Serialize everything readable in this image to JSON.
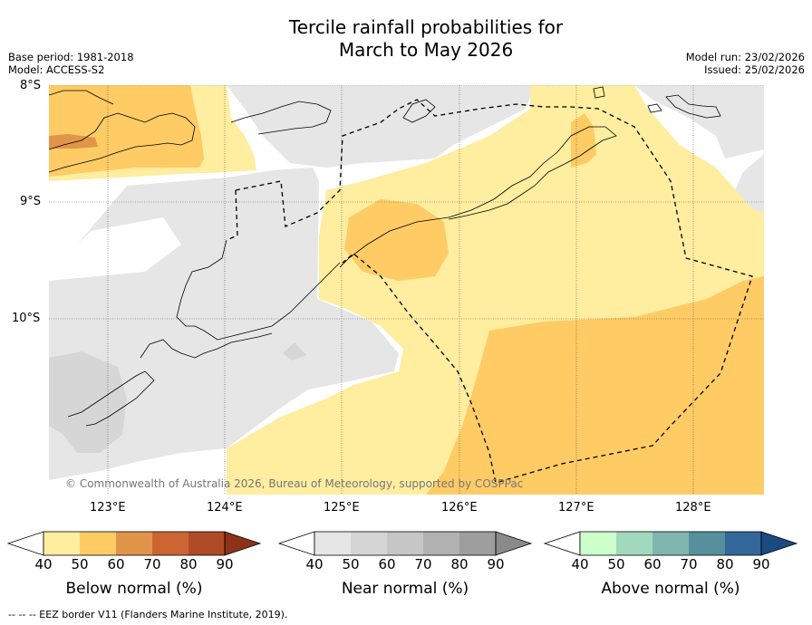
{
  "title_line1": "Tercile rainfall probabilities for",
  "title_line2": "March to May 2026",
  "base_period": "Base period: 1981-2018",
  "model": "Model: ACCESS-S2",
  "model_run": "Model run: 23/02/2026",
  "issued": "Issued: 25/02/2026",
  "lat_labels": [
    "8°S",
    "9°S",
    "10°S"
  ],
  "lon_labels": [
    "123°E",
    "124°E",
    "125°E",
    "126°E",
    "127°E",
    "128°E"
  ],
  "copyright": "© Commonwealth of Australia 2026, Bureau of Meteorology, supported by COSPPac",
  "footer": "--  --  -- EEZ border V11 (Flanders Marine Institute, 2019).",
  "colors": {
    "below": [
      "#ffeda0",
      "#fecb65",
      "#e0954a",
      "#cd6533",
      "#ae4a26",
      "#8c3217"
    ],
    "near": [
      "#e6e6e6",
      "#d6d6d6",
      "#c6c6c6",
      "#b1b1b1",
      "#9e9e9e",
      "#8a8a8a"
    ],
    "above": [
      "#ccffcc",
      "#a2d9bd",
      "#81b6b0",
      "#588f9c",
      "#336699",
      "#1b4a80"
    ]
  },
  "colorbars": [
    {
      "title": "Below normal (%)",
      "ticks": [
        "40",
        "50",
        "60",
        "70",
        "80",
        "90"
      ]
    },
    {
      "title": "Near normal (%)",
      "ticks": [
        "40",
        "50",
        "60",
        "70",
        "80",
        "90"
      ]
    },
    {
      "title": "Above normal (%)",
      "ticks": [
        "40",
        "50",
        "60",
        "70",
        "80",
        "90"
      ]
    }
  ]
}
